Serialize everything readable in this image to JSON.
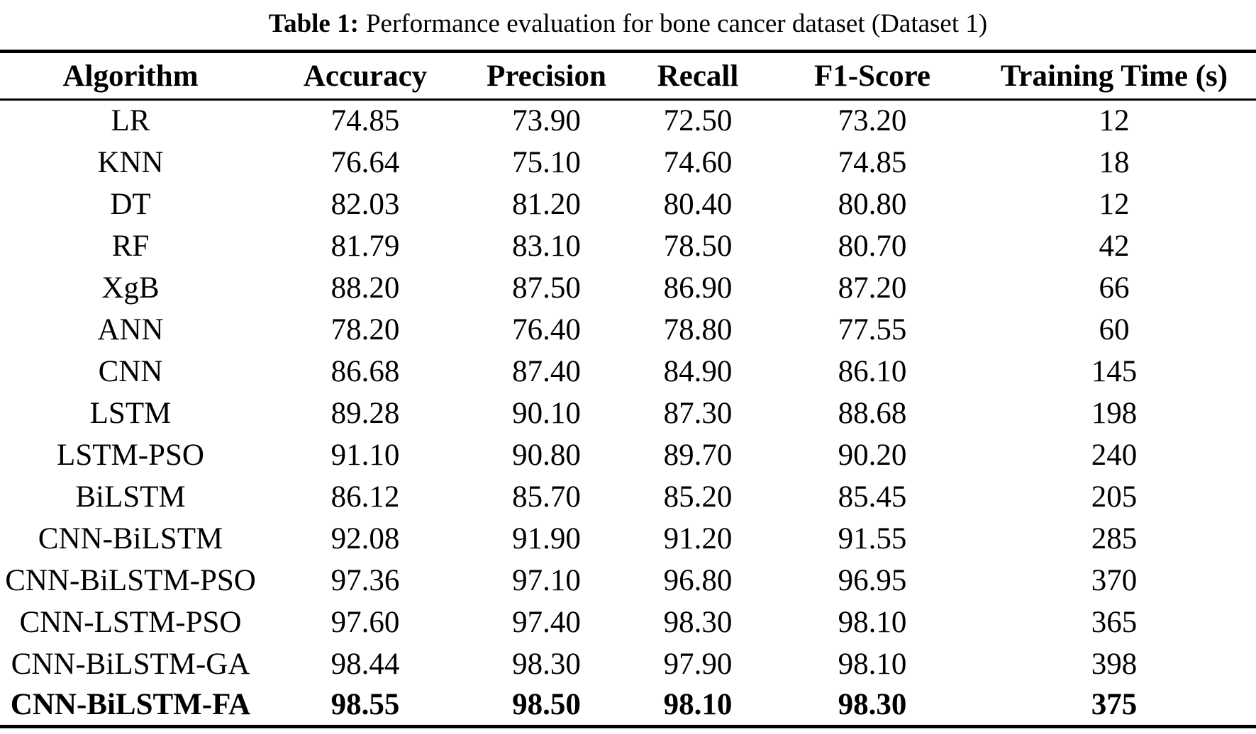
{
  "caption": {
    "label": "Table 1:",
    "text": "Performance evaluation for bone cancer dataset (Dataset 1)"
  },
  "table": {
    "columns": [
      "Algorithm",
      "Accuracy",
      "Precision",
      "Recall",
      "F1-Score",
      "Training Time (s)"
    ],
    "rows": [
      [
        "LR",
        "74.85",
        "73.90",
        "72.50",
        "73.20",
        "12"
      ],
      [
        "KNN",
        "76.64",
        "75.10",
        "74.60",
        "74.85",
        "18"
      ],
      [
        "DT",
        "82.03",
        "81.20",
        "80.40",
        "80.80",
        "12"
      ],
      [
        "RF",
        "81.79",
        "83.10",
        "78.50",
        "80.70",
        "42"
      ],
      [
        "XgB",
        "88.20",
        "87.50",
        "86.90",
        "87.20",
        "66"
      ],
      [
        "ANN",
        "78.20",
        "76.40",
        "78.80",
        "77.55",
        "60"
      ],
      [
        "CNN",
        "86.68",
        "87.40",
        "84.90",
        "86.10",
        "145"
      ],
      [
        "LSTM",
        "89.28",
        "90.10",
        "87.30",
        "88.68",
        "198"
      ],
      [
        "LSTM-PSO",
        "91.10",
        "90.80",
        "89.70",
        "90.20",
        "240"
      ],
      [
        "BiLSTM",
        "86.12",
        "85.70",
        "85.20",
        "85.45",
        "205"
      ],
      [
        "CNN-BiLSTM",
        "92.08",
        "91.90",
        "91.20",
        "91.55",
        "285"
      ],
      [
        "CNN-BiLSTM-PSO",
        "97.36",
        "97.10",
        "96.80",
        "96.95",
        "370"
      ],
      [
        "CNN-LSTM-PSO",
        "97.60",
        "97.40",
        "98.30",
        "98.10",
        "365"
      ],
      [
        "CNN-BiLSTM-GA",
        "98.44",
        "98.30",
        "97.90",
        "98.10",
        "398"
      ],
      [
        "CNN-BiLSTM-FA",
        "98.55",
        "98.50",
        "98.10",
        "98.30",
        "375"
      ]
    ],
    "bold_row": "CNN-BiLSTM-FA"
  },
  "colors": {
    "text": "#000000",
    "background": "#ffffff",
    "rule": "#000000"
  }
}
